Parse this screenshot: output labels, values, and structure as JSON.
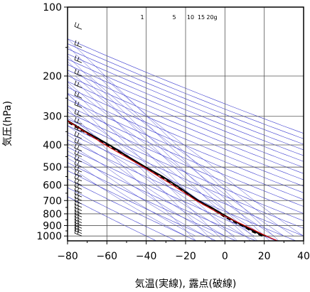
{
  "chart_data": {
    "type": "skew-t",
    "title": "",
    "xlabel": "気温(実線), 露点(破線)",
    "ylabel": "気圧(hPa)",
    "x_ticks": [
      "−80",
      "−60",
      "−40",
      "−20",
      "0",
      "20",
      "40"
    ],
    "y_ticks": [
      "100",
      "200",
      "300",
      "400",
      "500",
      "600",
      "700",
      "800",
      "900",
      "1000"
    ],
    "xlim": [
      -80,
      40
    ],
    "ylim_hpa": [
      1050,
      100
    ],
    "y_scale": "log",
    "mixing_ratio_labels": [
      "1",
      "5",
      "10",
      "15",
      "20g"
    ],
    "grid": true,
    "colors": {
      "temperature": "#000000",
      "dewpoint": "#000000",
      "reference": "#cc0000",
      "adiabats": "#4040d0",
      "isobars": "#555555",
      "wind": "#000000"
    },
    "series": [
      {
        "role": "temperature",
        "style": "solid",
        "points": [
          [
            1000,
            21
          ],
          [
            975,
            18
          ],
          [
            950,
            16.5
          ],
          [
            925,
            15
          ],
          [
            900,
            13
          ],
          [
            875,
            11.5
          ],
          [
            850,
            10
          ],
          [
            825,
            8.5
          ],
          [
            800,
            7
          ],
          [
            775,
            5.5
          ],
          [
            750,
            4
          ],
          [
            725,
            1.8
          ],
          [
            700,
            0
          ],
          [
            650,
            -2.6
          ],
          [
            600,
            -5.5
          ],
          [
            550,
            -9
          ],
          [
            500,
            -14
          ],
          [
            450,
            -19
          ],
          [
            400,
            -24
          ],
          [
            350,
            -31
          ],
          [
            300,
            -38
          ],
          [
            275,
            -42
          ],
          [
            250,
            -46
          ],
          [
            225,
            -52
          ],
          [
            200,
            -56
          ],
          [
            175,
            -63
          ],
          [
            150,
            -70
          ],
          [
            140,
            -72
          ],
          [
            130,
            -71
          ],
          [
            120,
            -71
          ],
          [
            110,
            -69
          ],
          [
            105,
            -70
          ],
          [
            100,
            -69
          ]
        ]
      },
      {
        "role": "dewpoint",
        "style": "dashed",
        "points": [
          [
            1000,
            19
          ],
          [
            975,
            17
          ],
          [
            950,
            15
          ],
          [
            925,
            14
          ],
          [
            900,
            12.5
          ],
          [
            875,
            10.5
          ],
          [
            850,
            9
          ],
          [
            825,
            7
          ],
          [
            800,
            6
          ],
          [
            775,
            4.5
          ],
          [
            750,
            3
          ],
          [
            725,
            1
          ],
          [
            700,
            -0.5
          ],
          [
            650,
            -3
          ],
          [
            600,
            -6
          ],
          [
            550,
            -10
          ],
          [
            500,
            -14.5
          ],
          [
            450,
            -19.5
          ],
          [
            400,
            -25
          ],
          [
            350,
            -32
          ],
          [
            300,
            -39
          ],
          [
            275,
            -43
          ],
          [
            250,
            -47
          ],
          [
            250,
            -72
          ]
        ]
      },
      {
        "role": "reference",
        "style": "solid",
        "points": [
          [
            1050,
            25
          ],
          [
            1000,
            21
          ],
          [
            900,
            14
          ],
          [
            800,
            6
          ],
          [
            700,
            -1
          ],
          [
            600,
            -7
          ],
          [
            500,
            -15
          ],
          [
            400,
            -26
          ],
          [
            300,
            -38
          ],
          [
            250,
            -46
          ],
          [
            200,
            -58
          ],
          [
            150,
            -72
          ],
          [
            120,
            -82
          ]
        ]
      }
    ],
    "wind_levels_hpa": [
      1000,
      975,
      950,
      925,
      900,
      875,
      850,
      825,
      800,
      775,
      750,
      725,
      700,
      675,
      650,
      625,
      600,
      575,
      550,
      525,
      500,
      475,
      450,
      425,
      400,
      375,
      350,
      325,
      300,
      275,
      250,
      225,
      200,
      175,
      150,
      125,
      100
    ]
  }
}
